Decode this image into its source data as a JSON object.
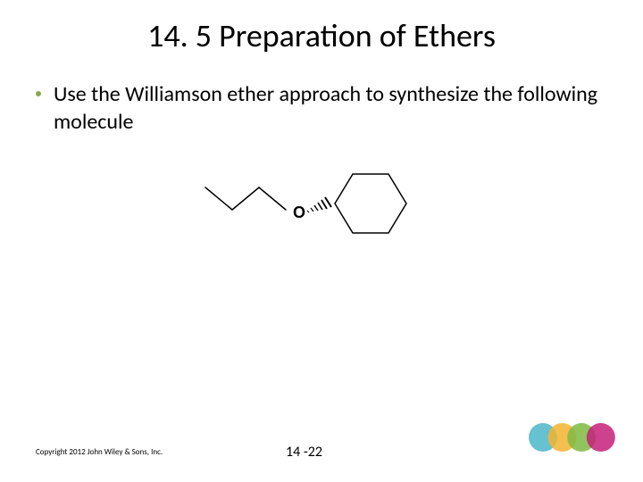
{
  "title": "14. 5 Preparation of Ethers",
  "bullet": {
    "dot_color": "#8ca84e",
    "text": "Use the Williamson ether approach to synthesize the following molecule"
  },
  "molecule": {
    "oxygen_label": "O",
    "bond_color": "#000000",
    "line_width": 1.5
  },
  "footer": {
    "copyright": "Copyright 2012 John Wiley & Sons, Inc.",
    "page_number": "14 -22"
  },
  "decorative_circles": {
    "radius": 16,
    "colors": [
      "#4bb6c9",
      "#f2b430",
      "#7fba42",
      "#c4207a"
    ],
    "opacity": 0.85
  }
}
